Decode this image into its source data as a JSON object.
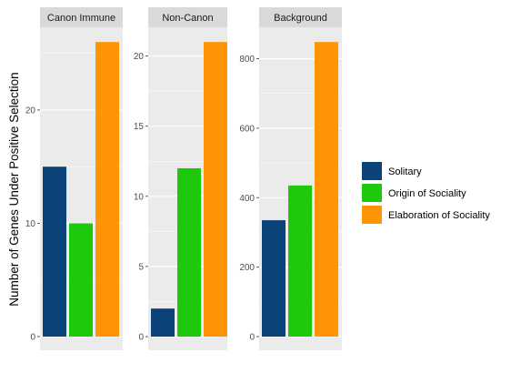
{
  "chart_data": {
    "type": "bar",
    "ylabel": "Number of Genes Under Positive Selection",
    "xlabel": "",
    "grid": true,
    "legend_position": "right",
    "series": [
      {
        "name": "Solitary",
        "color": "#0b4277"
      },
      {
        "name": "Origin of Sociality",
        "color": "#1ec90b"
      },
      {
        "name": "Elaboration of Sociality",
        "color": "#ff9505"
      }
    ],
    "facets": [
      {
        "title": "Canon Immune",
        "values": [
          15,
          10,
          26
        ],
        "ylim": [
          0,
          27.3
        ],
        "yticks": [
          0,
          10,
          20
        ],
        "yticklabels": [
          "0",
          "10",
          "20"
        ]
      },
      {
        "title": "Non-Canon",
        "values": [
          2,
          12,
          21
        ],
        "ylim": [
          0,
          22.05
        ],
        "yticks": [
          0,
          5,
          10,
          15,
          20
        ],
        "yticklabels": [
          "0",
          "5",
          "10",
          "15",
          "20"
        ]
      },
      {
        "title": "Background",
        "values": [
          335,
          435,
          848
        ],
        "ylim": [
          0,
          890.4
        ],
        "yticks": [
          0,
          200,
          400,
          600,
          800
        ],
        "yticklabels": [
          "0",
          "200",
          "400",
          "600",
          "800"
        ]
      }
    ]
  }
}
